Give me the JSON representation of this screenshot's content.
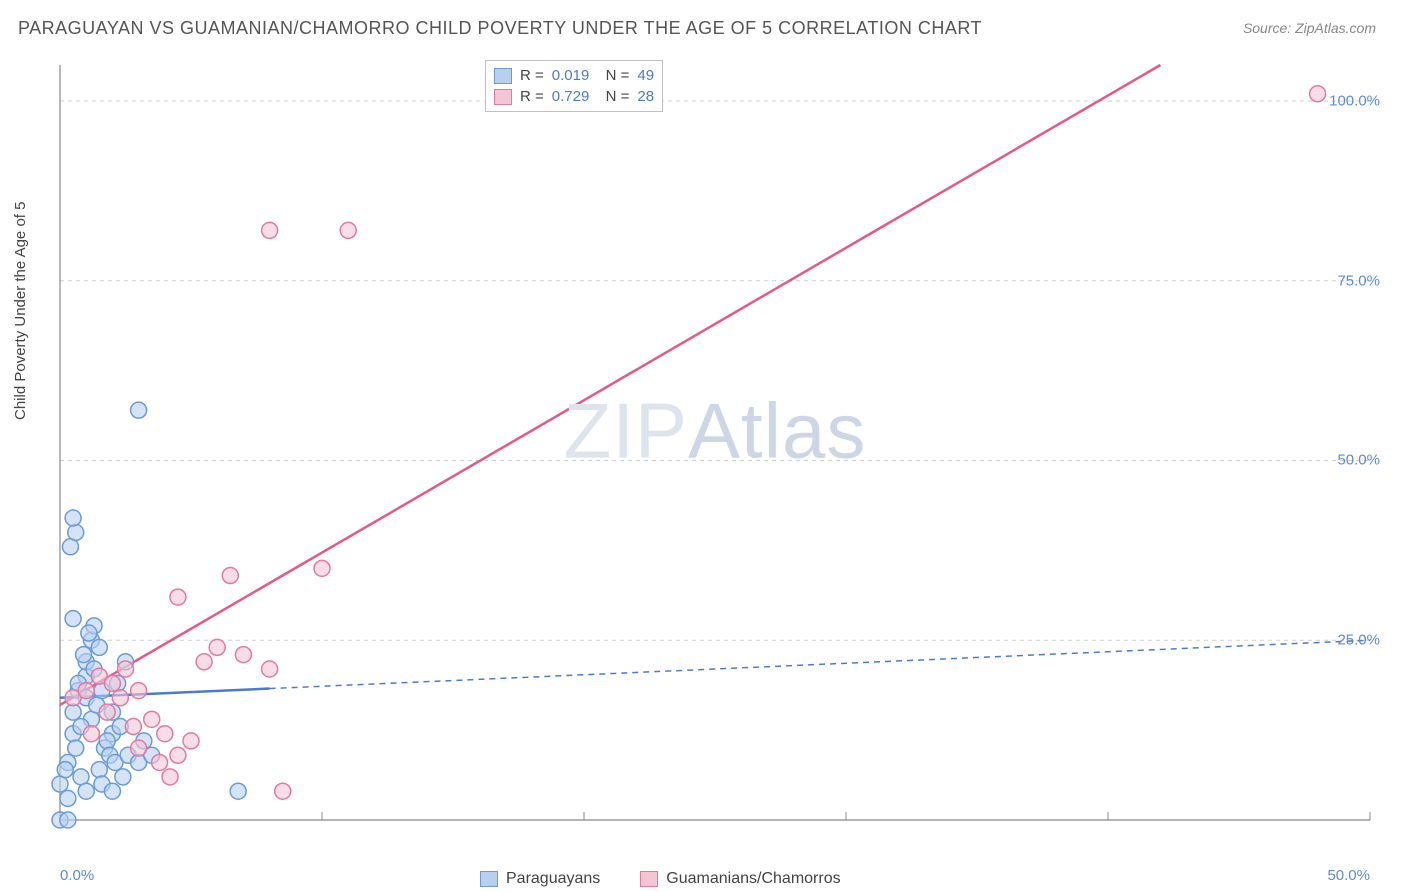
{
  "title": "PARAGUAYAN VS GUAMANIAN/CHAMORRO CHILD POVERTY UNDER THE AGE OF 5 CORRELATION CHART",
  "source_label": "Source:",
  "source_value": "ZipAtlas.com",
  "y_axis_label": "Child Poverty Under the Age of 5",
  "watermark": "ZIPAtlas",
  "chart": {
    "type": "scatter",
    "xlim": [
      0,
      50
    ],
    "ylim": [
      0,
      105
    ],
    "x_ticks": [
      0,
      10,
      20,
      30,
      40,
      50
    ],
    "x_tick_labels": [
      "0.0%",
      "",
      "",
      "",
      "",
      "50.0%"
    ],
    "y_ticks": [
      25,
      50,
      75,
      100
    ],
    "y_tick_labels": [
      "25.0%",
      "50.0%",
      "75.0%",
      "100.0%"
    ],
    "background_color": "#ffffff",
    "grid_color": "#cfcfcf",
    "grid_dash": "4,4",
    "axis_color": "#888888",
    "marker_radius": 8,
    "marker_stroke_width": 1.5,
    "series": [
      {
        "name": "Paraguayans",
        "fill": "#b8d0ee",
        "stroke": "#6a9bd8",
        "fill_opacity": 0.6,
        "R": "0.019",
        "N": "49",
        "trend_line": {
          "x1": 0,
          "y1": 17,
          "x2": 50,
          "y2": 25,
          "solid_until_x": 8,
          "color": "#4a7bd0",
          "width": 2.5
        },
        "points": [
          [
            0,
            0
          ],
          [
            0,
            5
          ],
          [
            0.3,
            3
          ],
          [
            0.5,
            12
          ],
          [
            0.5,
            15
          ],
          [
            0.7,
            18
          ],
          [
            1,
            20
          ],
          [
            1,
            22
          ],
          [
            1.2,
            25
          ],
          [
            1.3,
            27
          ],
          [
            0.3,
            8
          ],
          [
            0.6,
            10
          ],
          [
            0.8,
            6
          ],
          [
            1,
            4
          ],
          [
            1.5,
            7
          ],
          [
            1.7,
            10
          ],
          [
            2,
            12
          ],
          [
            2,
            15
          ],
          [
            0.5,
            28
          ],
          [
            0.7,
            19
          ],
          [
            1,
            17
          ],
          [
            1.2,
            14
          ],
          [
            1.4,
            16
          ],
          [
            1.6,
            18
          ],
          [
            2.2,
            19
          ],
          [
            2.5,
            22
          ],
          [
            0.4,
            38
          ],
          [
            0.6,
            40
          ],
          [
            0.5,
            42
          ],
          [
            3,
            57
          ],
          [
            1.8,
            11
          ],
          [
            1.9,
            9
          ],
          [
            2.1,
            8
          ],
          [
            2.4,
            6
          ],
          [
            2.6,
            9
          ],
          [
            3,
            8
          ],
          [
            3.2,
            11
          ],
          [
            3.5,
            9
          ],
          [
            0.2,
            7
          ],
          [
            0.8,
            13
          ],
          [
            1.3,
            21
          ],
          [
            1.5,
            24
          ],
          [
            0.9,
            23
          ],
          [
            1.1,
            26
          ],
          [
            6.8,
            4
          ],
          [
            1.6,
            5
          ],
          [
            2,
            4
          ],
          [
            2.3,
            13
          ],
          [
            0.3,
            0
          ]
        ]
      },
      {
        "name": "Guamanians/Chamorros",
        "fill": "#f4c6d4",
        "stroke": "#e678a0",
        "fill_opacity": 0.6,
        "R": "0.729",
        "N": "28",
        "trend_line": {
          "x1": 0,
          "y1": 16,
          "x2": 42,
          "y2": 105,
          "color": "#e35a8a",
          "width": 2.5
        },
        "points": [
          [
            0.5,
            17
          ],
          [
            1,
            18
          ],
          [
            1.5,
            20
          ],
          [
            2,
            19
          ],
          [
            2.5,
            21
          ],
          [
            3,
            18
          ],
          [
            3.5,
            14
          ],
          [
            4,
            12
          ],
          [
            4.5,
            9
          ],
          [
            5,
            11
          ],
          [
            5.5,
            22
          ],
          [
            6,
            24
          ],
          [
            7,
            23
          ],
          [
            8,
            21
          ],
          [
            8.5,
            4
          ],
          [
            3,
            10
          ],
          [
            3.8,
            8
          ],
          [
            4.2,
            6
          ],
          [
            1.8,
            15
          ],
          [
            2.3,
            17
          ],
          [
            4.5,
            31
          ],
          [
            6.5,
            34
          ],
          [
            10,
            35
          ],
          [
            11,
            82
          ],
          [
            8,
            82
          ],
          [
            48,
            101
          ],
          [
            1.2,
            12
          ],
          [
            2.8,
            13
          ]
        ]
      }
    ]
  },
  "legend": [
    {
      "label": "Paraguayans",
      "fill": "#b8d0ee",
      "stroke": "#6a9bd8"
    },
    {
      "label": "Guamanians/Chamorros",
      "fill": "#f4c6d4",
      "stroke": "#e678a0"
    }
  ]
}
